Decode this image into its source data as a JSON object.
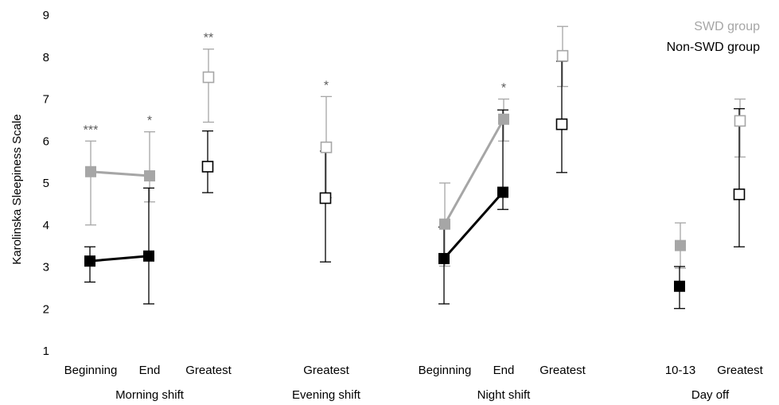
{
  "chart_data": {
    "type": "scatter",
    "ylabel": "Karolinska Sleepiness Scale",
    "ylim": [
      1,
      9
    ],
    "yticks": [
      1,
      2,
      3,
      4,
      5,
      6,
      7,
      8,
      9
    ],
    "grid": false,
    "legend_position": "top-right",
    "categories": [
      "Beginning",
      "End",
      "Greatest",
      "Greatest",
      "Beginning",
      "End",
      "Greatest",
      "10-13",
      "Greatest"
    ],
    "groups": [
      {
        "label": "Morning shift",
        "categories": [
          0,
          1,
          2
        ]
      },
      {
        "label": "Evening shift",
        "categories": [
          3
        ]
      },
      {
        "label": "Night shift",
        "categories": [
          4,
          5,
          6
        ]
      },
      {
        "label": "Day off",
        "categories": [
          7,
          8
        ]
      }
    ],
    "significance": [
      "***",
      "*",
      "**",
      "*",
      "",
      "*",
      "",
      "",
      ""
    ],
    "connected_pairs": [
      [
        0,
        1
      ],
      [
        4,
        5
      ]
    ],
    "series": [
      {
        "name": "SWD group",
        "color": "#a6a6a6",
        "mean": [
          5.27,
          5.17,
          7.52,
          5.85,
          4.02,
          6.52,
          8.03,
          3.51,
          6.48
        ],
        "err_low": [
          4.0,
          4.55,
          6.45,
          4.65,
          3.02,
          6.0,
          7.3,
          2.97,
          5.62
        ],
        "err_high": [
          6.0,
          6.22,
          8.19,
          7.06,
          5.0,
          7.0,
          8.73,
          4.05,
          7.0
        ],
        "filled": [
          true,
          true,
          false,
          false,
          true,
          true,
          false,
          true,
          false
        ]
      },
      {
        "name": "Non-SWD group",
        "color": "#000000",
        "mean": [
          3.14,
          3.26,
          5.39,
          4.64,
          3.2,
          4.78,
          6.4,
          2.54,
          4.73
        ],
        "err_low": [
          2.64,
          2.12,
          4.77,
          3.12,
          2.12,
          4.37,
          5.25,
          2.01,
          3.48
        ],
        "err_high": [
          3.48,
          4.88,
          6.24,
          5.76,
          3.95,
          6.74,
          7.9,
          3.01,
          6.77
        ],
        "filled": [
          true,
          true,
          false,
          false,
          true,
          true,
          false,
          true,
          false
        ]
      }
    ]
  }
}
